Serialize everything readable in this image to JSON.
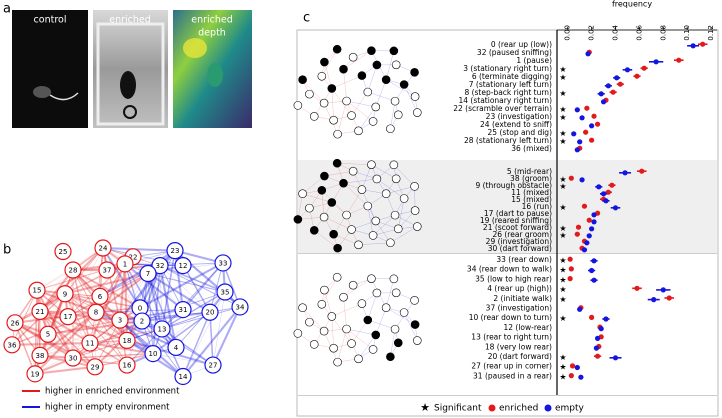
{
  "panel_labels": [
    "a",
    "b",
    "c"
  ],
  "photos": {
    "labels": [
      "control",
      "enriched",
      "enriched"
    ],
    "sublabel": "depth"
  },
  "network": {
    "nodes": [
      "25",
      "24",
      "23",
      "22",
      "32",
      "28",
      "37",
      "15",
      "9",
      "6",
      "1",
      "7",
      "12",
      "33",
      "21",
      "17",
      "8",
      "3",
      "0",
      "2",
      "13",
      "31",
      "35",
      "26",
      "5",
      "11",
      "10",
      "4",
      "20",
      "34",
      "36",
      "38",
      "30",
      "16",
      "27",
      "19",
      "29",
      "18",
      "14"
    ],
    "legend": [
      "higher in enriched environment",
      "higher in empty environment"
    ]
  },
  "chart_data": {
    "type": "dot",
    "x_label": "frequency",
    "xlim": [
      -0.009,
      0.125
    ],
    "xticks": [
      {
        "value": 0,
        "label": "0.00"
      },
      {
        "value": 0.02,
        "label": "0.02"
      },
      {
        "value": 0.04,
        "label": "0.04"
      },
      {
        "value": 0.06,
        "label": "0.06"
      },
      {
        "value": 0.08,
        "label": "0.08"
      },
      {
        "value": 0.1,
        "label": "0.10"
      },
      {
        "value": 0.12,
        "label": "0.12"
      }
    ],
    "categories": [
      [
        "0 (rear up (low))",
        "32 (paused sniffing)",
        "1 (pause)",
        "3 (stationary right turn)",
        "6 (terminate digging)",
        "7 (stationary left turn)",
        "8 (step-back right turn)",
        "14 (stationary right turn)",
        "22 (scramble over terrain)",
        "23 (investigation)",
        "24 (extend to sniff)",
        "25 (stop and dig)",
        "28 (stationary left turn)",
        "36 (mixed)"
      ],
      [
        "5 (mid-rear)",
        "38 (groom)",
        "9 (through obstacle)",
        "11 (mixed)",
        "15 (mixed)",
        "16 (run)",
        "17 (dart to pause)",
        "19 (reared sniffing)",
        "21 (scoot forward)",
        "26 (rear groom)",
        "29 (investigation)",
        "30 (dart forward)"
      ],
      [
        "33 (rear down)",
        "34 (rear down to walk)",
        "35 (low to high rear)",
        "4 (rear up (high))",
        "2 (initiate walk)",
        "37 (investigation)",
        "10 (rear down to turn)",
        "12 (low-rear)",
        "13 (rear to right turn)",
        "18 (very low rear)",
        "20 (dart forward)",
        "27 (rear up in corner)",
        "31 (paused in a rear)"
      ]
    ],
    "series": [
      {
        "name": "enriched",
        "color": "#e31a1c",
        "values": [
          [
            0.113,
            0.018,
            0.093,
            0.064,
            0.058,
            0.044,
            0.038,
            0.032,
            0.016,
            0.022,
            0.025,
            0.015,
            0.02,
            0.01
          ],
          [
            0.062,
            0.003,
            0.037,
            0.034,
            0.03,
            0.014,
            0.025,
            0.018,
            0.009,
            0.008,
            0.014,
            0.012
          ],
          [
            0.002,
            0.003,
            0.002,
            0.058,
            0.085,
            0.011,
            0.02,
            0.027,
            0.028,
            0.026,
            0.025,
            0.004,
            0.003
          ]
        ],
        "errors": [
          [
            0.004,
            0.002,
            0.004,
            0.003,
            0.003,
            0.003,
            0.003,
            0.002,
            0.002,
            0.002,
            0.002,
            0.002,
            0.002,
            0.002
          ],
          [
            0.004,
            0.001,
            0.003,
            0.003,
            0.003,
            0.002,
            0.002,
            0.002,
            0.002,
            0.002,
            0.002,
            0.002
          ],
          [
            0.001,
            0.001,
            0.001,
            0.004,
            0.004,
            0.002,
            0.002,
            0.002,
            0.002,
            0.002,
            0.003,
            0.001,
            0.001
          ]
        ]
      },
      {
        "name": "empty",
        "color": "#1515e0",
        "values": [
          [
            0.105,
            0.017,
            0.074,
            0.05,
            0.041,
            0.034,
            0.028,
            0.03,
            0.008,
            0.012,
            0.02,
            0.005,
            0.01,
            0.008
          ],
          [
            0.048,
            0.012,
            0.026,
            0.03,
            0.032,
            0.04,
            0.022,
            0.022,
            0.02,
            0.018,
            0.016,
            0.014
          ],
          [
            0.022,
            0.02,
            0.022,
            0.08,
            0.072,
            0.01,
            0.032,
            0.028,
            0.025,
            0.024,
            0.04,
            0.008,
            0.011
          ]
        ],
        "errors": [
          [
            0.005,
            0.002,
            0.006,
            0.004,
            0.003,
            0.003,
            0.003,
            0.002,
            0.002,
            0.002,
            0.002,
            0.002,
            0.002,
            0.002
          ],
          [
            0.005,
            0.002,
            0.003,
            0.003,
            0.003,
            0.004,
            0.002,
            0.002,
            0.002,
            0.002,
            0.002,
            0.002
          ],
          [
            0.003,
            0.003,
            0.003,
            0.006,
            0.005,
            0.002,
            0.003,
            0.002,
            0.002,
            0.002,
            0.005,
            0.002,
            0.002
          ]
        ]
      }
    ],
    "significant": [
      [
        false,
        false,
        false,
        true,
        true,
        false,
        true,
        false,
        true,
        true,
        false,
        true,
        true,
        false
      ],
      [
        false,
        true,
        true,
        false,
        false,
        true,
        false,
        false,
        true,
        true,
        false,
        false
      ],
      [
        true,
        true,
        true,
        true,
        true,
        false,
        true,
        false,
        false,
        false,
        true,
        true,
        true
      ]
    ],
    "significant_label": "Significant"
  }
}
